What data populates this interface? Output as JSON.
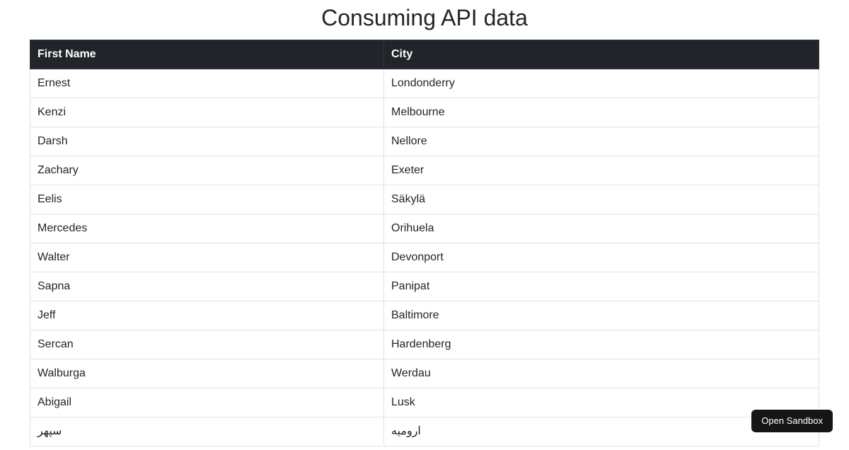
{
  "page": {
    "title": "Consuming API data"
  },
  "table": {
    "columns": [
      "First Name",
      "City"
    ],
    "rows": [
      {
        "first_name": "Ernest",
        "city": "Londonderry"
      },
      {
        "first_name": "Kenzi",
        "city": "Melbourne"
      },
      {
        "first_name": "Darsh",
        "city": "Nellore"
      },
      {
        "first_name": "Zachary",
        "city": "Exeter"
      },
      {
        "first_name": "Eelis",
        "city": "Säkylä"
      },
      {
        "first_name": "Mercedes",
        "city": "Orihuela"
      },
      {
        "first_name": "Walter",
        "city": "Devonport"
      },
      {
        "first_name": "Sapna",
        "city": "Panipat"
      },
      {
        "first_name": "Jeff",
        "city": "Baltimore"
      },
      {
        "first_name": "Sercan",
        "city": "Hardenberg"
      },
      {
        "first_name": "Walburga",
        "city": "Werdau"
      },
      {
        "first_name": "Abigail",
        "city": "Lusk"
      },
      {
        "first_name": "سپهر",
        "city": "ارومیه"
      }
    ]
  },
  "sandbox_button": {
    "label": "Open Sandbox"
  },
  "colors": {
    "header_bg": "#212529",
    "header_text": "#ffffff",
    "body_text": "#212529",
    "row_border": "#dee2e6",
    "button_bg": "#161616",
    "button_text": "#ffffff"
  }
}
